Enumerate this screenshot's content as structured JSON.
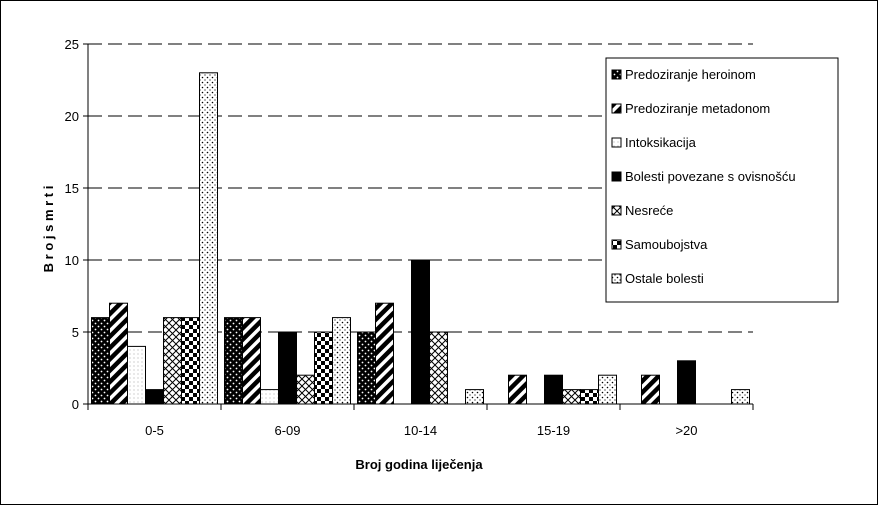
{
  "chart_data": {
    "type": "bar",
    "title": "",
    "xlabel": "Broj godina liječenja",
    "ylabel": "B r o j s m r t i",
    "ylim": [
      0,
      25
    ],
    "yticks": [
      "0",
      "5",
      "10",
      "15",
      "20",
      "25"
    ],
    "grid": true,
    "legend_position": "top-right",
    "categories": [
      "0-5",
      "6-09",
      "10-14",
      "15-19",
      ">20"
    ],
    "series": [
      {
        "name": "Predoziranje heroinom",
        "pattern": "dots-on-black",
        "values": [
          6,
          6,
          5,
          0,
          0
        ]
      },
      {
        "name": "Predoziranje metadonom",
        "pattern": "diagonal-stripes",
        "values": [
          7,
          6,
          7,
          2,
          2
        ]
      },
      {
        "name": "Intoksikacija",
        "pattern": "fine-dots",
        "values": [
          4,
          1,
          0,
          0,
          0
        ]
      },
      {
        "name": "Bolesti povezane s ovisnošću",
        "pattern": "solid-black",
        "values": [
          1,
          5,
          10,
          2,
          3
        ]
      },
      {
        "name": "Nesreće",
        "pattern": "crosshatch",
        "values": [
          6,
          2,
          5,
          1,
          0
        ]
      },
      {
        "name": "Samoubojstva",
        "pattern": "checker",
        "values": [
          6,
          5,
          0,
          1,
          0
        ]
      },
      {
        "name": "Ostale bolesti",
        "pattern": "dotted",
        "values": [
          23,
          6,
          1,
          2,
          1
        ]
      }
    ]
  }
}
